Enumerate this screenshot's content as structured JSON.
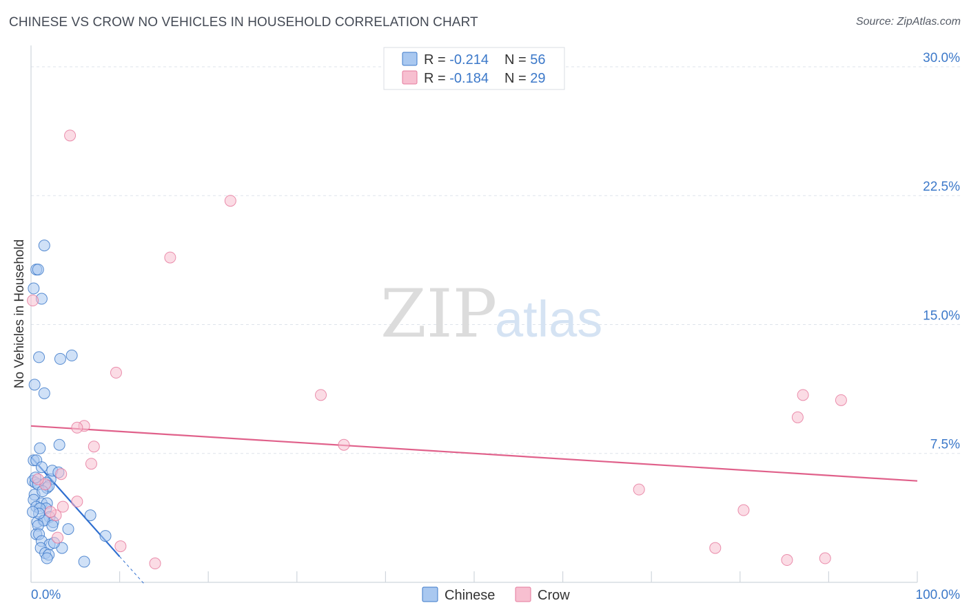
{
  "header": {
    "title": "CHINESE VS CROW NO VEHICLES IN HOUSEHOLD CORRELATION CHART",
    "source": "Source: ZipAtlas.com"
  },
  "watermark": {
    "zip": "ZIP",
    "atlas": "atlas"
  },
  "legend_top": [
    {
      "r_label": "R = ",
      "r_value": "-0.214",
      "n_label": "N = ",
      "n_value": "56",
      "color": "#a9c8f0"
    },
    {
      "r_label": "R = ",
      "r_value": "-0.184",
      "n_label": "N = ",
      "n_value": "29",
      "color": "#f7bfd0"
    }
  ],
  "legend_bottom": [
    {
      "label": "Chinese",
      "color": "#a9c8f0"
    },
    {
      "label": "Crow",
      "color": "#f7bfd0"
    }
  ],
  "colors": {
    "chinese_fill": "#a9c8f0",
    "chinese_stroke": "#3b78c9",
    "chinese_line": "#2f6fd0",
    "crow_fill": "#f7bfd0",
    "crow_stroke": "#e67a9d",
    "crow_line": "#e0608a",
    "grid": "#dde3ea",
    "tick_text": "#3b78c9"
  },
  "chart_data": {
    "type": "scatter",
    "title": "CHINESE VS CROW NO VEHICLES IN HOUSEHOLD CORRELATION CHART",
    "xlabel": "",
    "ylabel": "No Vehicles in Household",
    "xlim": [
      0,
      100
    ],
    "ylim": [
      0,
      31
    ],
    "x_tick_labels": [
      "0.0%",
      "100.0%"
    ],
    "y_ticks": [
      7.5,
      15.0,
      22.5,
      30.0
    ],
    "y_tick_labels": [
      "7.5%",
      "15.0%",
      "22.5%",
      "30.0%"
    ],
    "grid": true,
    "legend_position": "top-center",
    "series": [
      {
        "name": "Chinese",
        "r": -0.214,
        "n": 56,
        "points": [
          [
            0.3,
            17.1
          ],
          [
            0.6,
            18.2
          ],
          [
            0.8,
            18.2
          ],
          [
            1.5,
            19.6
          ],
          [
            1.2,
            16.5
          ],
          [
            0.9,
            13.1
          ],
          [
            3.3,
            13.0
          ],
          [
            4.6,
            13.2
          ],
          [
            0.4,
            11.5
          ],
          [
            1.5,
            11.0
          ],
          [
            1.0,
            7.8
          ],
          [
            3.2,
            8.0
          ],
          [
            0.3,
            7.1
          ],
          [
            0.6,
            7.1
          ],
          [
            1.2,
            6.7
          ],
          [
            2.2,
            6.0
          ],
          [
            2.4,
            6.5
          ],
          [
            3.1,
            6.4
          ],
          [
            0.2,
            5.9
          ],
          [
            0.5,
            5.8
          ],
          [
            0.8,
            5.7
          ],
          [
            1.7,
            5.8
          ],
          [
            1.8,
            5.5
          ],
          [
            2.0,
            5.6
          ],
          [
            0.4,
            5.1
          ],
          [
            0.3,
            4.8
          ],
          [
            1.2,
            4.6
          ],
          [
            1.8,
            4.6
          ],
          [
            0.6,
            4.4
          ],
          [
            1.7,
            4.3
          ],
          [
            1.0,
            4.3
          ],
          [
            2.1,
            3.8
          ],
          [
            1.4,
            3.6
          ],
          [
            2.5,
            3.5
          ],
          [
            0.7,
            3.5
          ],
          [
            1.5,
            3.6
          ],
          [
            2.4,
            3.3
          ],
          [
            0.8,
            3.3
          ],
          [
            4.2,
            3.1
          ],
          [
            0.6,
            2.8
          ],
          [
            0.9,
            2.8
          ],
          [
            1.2,
            2.4
          ],
          [
            6.7,
            3.9
          ],
          [
            8.4,
            2.7
          ],
          [
            2.1,
            2.2
          ],
          [
            1.1,
            2.0
          ],
          [
            1.6,
            1.7
          ],
          [
            3.5,
            2.0
          ],
          [
            2.0,
            1.6
          ],
          [
            1.8,
            1.4
          ],
          [
            6.0,
            1.2
          ],
          [
            0.5,
            6.1
          ],
          [
            0.9,
            4.0
          ],
          [
            2.6,
            2.3
          ],
          [
            1.3,
            5.3
          ],
          [
            0.2,
            4.1
          ]
        ],
        "trend": {
          "x": [
            0.0,
            10.0
          ],
          "y": [
            7.3,
            1.5
          ],
          "dashed_extension_x": [
            10.0,
            12.7
          ],
          "dashed_extension_y": [
            1.5,
            -0.05
          ]
        }
      },
      {
        "name": "Crow",
        "r": -0.184,
        "n": 29,
        "points": [
          [
            0.2,
            16.4
          ],
          [
            4.4,
            26.0
          ],
          [
            22.5,
            22.2
          ],
          [
            15.7,
            18.9
          ],
          [
            9.6,
            12.2
          ],
          [
            32.7,
            10.9
          ],
          [
            6.0,
            9.1
          ],
          [
            5.2,
            9.0
          ],
          [
            7.1,
            7.9
          ],
          [
            6.8,
            6.9
          ],
          [
            3.4,
            6.3
          ],
          [
            35.3,
            8.0
          ],
          [
            5.2,
            4.7
          ],
          [
            3.6,
            4.4
          ],
          [
            2.8,
            3.9
          ],
          [
            3.0,
            2.6
          ],
          [
            10.1,
            2.1
          ],
          [
            14.0,
            1.1
          ],
          [
            87.1,
            10.9
          ],
          [
            91.4,
            10.6
          ],
          [
            86.5,
            9.6
          ],
          [
            68.6,
            5.4
          ],
          [
            80.4,
            4.2
          ],
          [
            77.2,
            2.0
          ],
          [
            85.3,
            1.3
          ],
          [
            89.6,
            1.4
          ],
          [
            1.6,
            5.7
          ],
          [
            2.2,
            4.1
          ],
          [
            0.8,
            6.0
          ]
        ],
        "trend": {
          "x": [
            0.0,
            100.0
          ],
          "y": [
            9.1,
            5.9
          ]
        }
      }
    ]
  }
}
